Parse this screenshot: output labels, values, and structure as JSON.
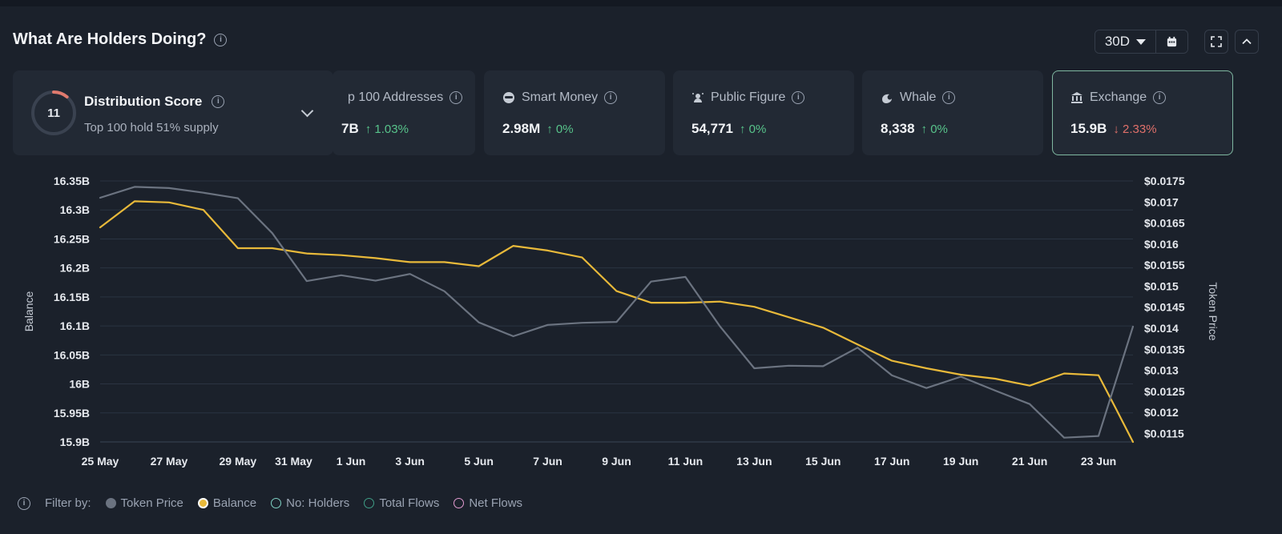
{
  "header": {
    "title": "What Are Holders Doing?",
    "info_glyph": "i",
    "range_label": "30D",
    "calendar_icon": "calendar-icon",
    "expand_icon": "expand-icon",
    "collapse_icon": "chevron-up-icon"
  },
  "distribution": {
    "score": "11",
    "score_fraction": 0.11,
    "title": "Distribution Score",
    "subtitle": "Top 100 hold 51% supply"
  },
  "cards": [
    {
      "label": "p 100 Addresses",
      "value": "7B",
      "change": "1.03%",
      "direction": "up",
      "icon": "top-addresses-icon"
    },
    {
      "label": "Smart Money",
      "value": "2.98M",
      "change": "0%",
      "direction": "up",
      "icon": "smart-money-icon"
    },
    {
      "label": "Public Figure",
      "value": "54,771",
      "change": "0%",
      "direction": "up",
      "icon": "public-figure-icon"
    },
    {
      "label": "Whale",
      "value": "8,338",
      "change": "0%",
      "direction": "up",
      "icon": "whale-icon"
    },
    {
      "label": "Exchange",
      "value": "15.9B",
      "change": "2.33%",
      "direction": "down",
      "icon": "exchange-icon"
    }
  ],
  "legend": {
    "prefix": "Filter by:",
    "items": [
      {
        "label": "Token Price",
        "color": "#6b7380",
        "filled": true
      },
      {
        "label": "Balance",
        "color": "#e8b93a",
        "filled": true
      },
      {
        "label": "No: Holders",
        "color": "#7fd1c4",
        "filled": false
      },
      {
        "label": "Total Flows",
        "color": "#3f9e86",
        "filled": false
      },
      {
        "label": "Net Flows",
        "color": "#e29ad0",
        "filled": false
      }
    ]
  },
  "colors": {
    "balance": "#e8b93a",
    "price": "#6b7380",
    "grid": "#2b3442",
    "zero_line": "#3a4556",
    "score_arc": "#e07a6e"
  },
  "chart_data": {
    "type": "line",
    "title": "",
    "xlabel": "",
    "ylabel": "Balance",
    "y2label": "Token Price",
    "ylim": [
      15.9,
      16.35
    ],
    "y2lim": [
      0.0113,
      0.0175
    ],
    "y_ticks": [
      16.35,
      16.3,
      16.25,
      16.2,
      16.15,
      16.1,
      16.05,
      16.0,
      15.95,
      15.9
    ],
    "y_tick_labels": [
      "16.35B",
      "16.3B",
      "16.25B",
      "16.2B",
      "16.15B",
      "16.1B",
      "16.05B",
      "16B",
      "15.95B",
      "15.9B"
    ],
    "y2_ticks": [
      0.0175,
      0.017,
      0.0165,
      0.016,
      0.0155,
      0.015,
      0.0145,
      0.014,
      0.0135,
      0.013,
      0.0125,
      0.012,
      0.0115
    ],
    "y2_tick_labels": [
      "$0.0175",
      "$0.017",
      "$0.0165",
      "$0.016",
      "$0.0155",
      "$0.015",
      "$0.0145",
      "$0.014",
      "$0.0135",
      "$0.013",
      "$0.0125",
      "$0.012",
      "$0.0115"
    ],
    "x_day_range": [
      0,
      30
    ],
    "x_ticks": [
      {
        "day": 0,
        "label": "25 May"
      },
      {
        "day": 2,
        "label": "27 May"
      },
      {
        "day": 4,
        "label": "29 May"
      },
      {
        "day": 6,
        "label": "31 May"
      },
      {
        "day": 7,
        "label": "1 Jun"
      },
      {
        "day": 9,
        "label": "3 Jun"
      },
      {
        "day": 11,
        "label": "5 Jun"
      },
      {
        "day": 13,
        "label": "7 Jun"
      },
      {
        "day": 15,
        "label": "9 Jun"
      },
      {
        "day": 17,
        "label": "11 Jun"
      },
      {
        "day": 19,
        "label": "13 Jun"
      },
      {
        "day": 21,
        "label": "15 Jun"
      },
      {
        "day": 23,
        "label": "17 Jun"
      },
      {
        "day": 25,
        "label": "19 Jun"
      },
      {
        "day": 27,
        "label": "21 Jun"
      },
      {
        "day": 29,
        "label": "23 Jun"
      }
    ],
    "series": [
      {
        "name": "Balance",
        "axis": "left",
        "unit": "B",
        "points": [
          [
            0,
            16.27
          ],
          [
            1,
            16.315
          ],
          [
            2,
            16.313
          ],
          [
            3,
            16.3
          ],
          [
            4,
            16.234
          ],
          [
            5,
            16.234
          ],
          [
            6,
            16.225
          ],
          [
            7,
            16.222
          ],
          [
            8,
            16.217
          ],
          [
            9,
            16.21
          ],
          [
            10,
            16.21
          ],
          [
            11,
            16.203
          ],
          [
            12,
            16.238
          ],
          [
            13,
            16.23
          ],
          [
            14,
            16.218
          ],
          [
            15,
            16.16
          ],
          [
            16,
            16.14
          ],
          [
            17,
            16.14
          ],
          [
            18,
            16.142
          ],
          [
            19,
            16.133
          ],
          [
            20,
            16.115
          ],
          [
            21,
            16.097
          ],
          [
            22,
            16.068
          ],
          [
            23,
            16.04
          ],
          [
            24,
            16.027
          ],
          [
            25,
            16.016
          ],
          [
            26,
            16.009
          ],
          [
            27,
            15.997
          ],
          [
            28,
            16.018
          ],
          [
            29,
            16.015
          ],
          [
            29.5,
            15.958
          ],
          [
            30,
            15.9
          ]
        ]
      },
      {
        "name": "Token Price",
        "axis": "right",
        "unit": "$",
        "points": [
          [
            0,
            0.0171
          ],
          [
            1,
            0.01736
          ],
          [
            2,
            0.01733
          ],
          [
            3,
            0.01722
          ],
          [
            4,
            0.01709
          ],
          [
            5,
            0.01626
          ],
          [
            6,
            0.01512
          ],
          [
            7,
            0.01526
          ],
          [
            8,
            0.01513
          ],
          [
            9,
            0.01529
          ],
          [
            10,
            0.01488
          ],
          [
            11,
            0.01414
          ],
          [
            12,
            0.01381
          ],
          [
            13,
            0.01408
          ],
          [
            14,
            0.01413
          ],
          [
            15,
            0.01415
          ],
          [
            16,
            0.01511
          ],
          [
            17,
            0.01522
          ],
          [
            18,
            0.01405
          ],
          [
            19,
            0.01305
          ],
          [
            20,
            0.01311
          ],
          [
            21,
            0.0131
          ],
          [
            22,
            0.01354
          ],
          [
            23,
            0.01288
          ],
          [
            24,
            0.01258
          ],
          [
            25,
            0.01285
          ],
          [
            26,
            0.01252
          ],
          [
            27,
            0.0122
          ],
          [
            28,
            0.0114
          ],
          [
            29,
            0.01144
          ],
          [
            30,
            0.01404
          ]
        ]
      }
    ]
  }
}
